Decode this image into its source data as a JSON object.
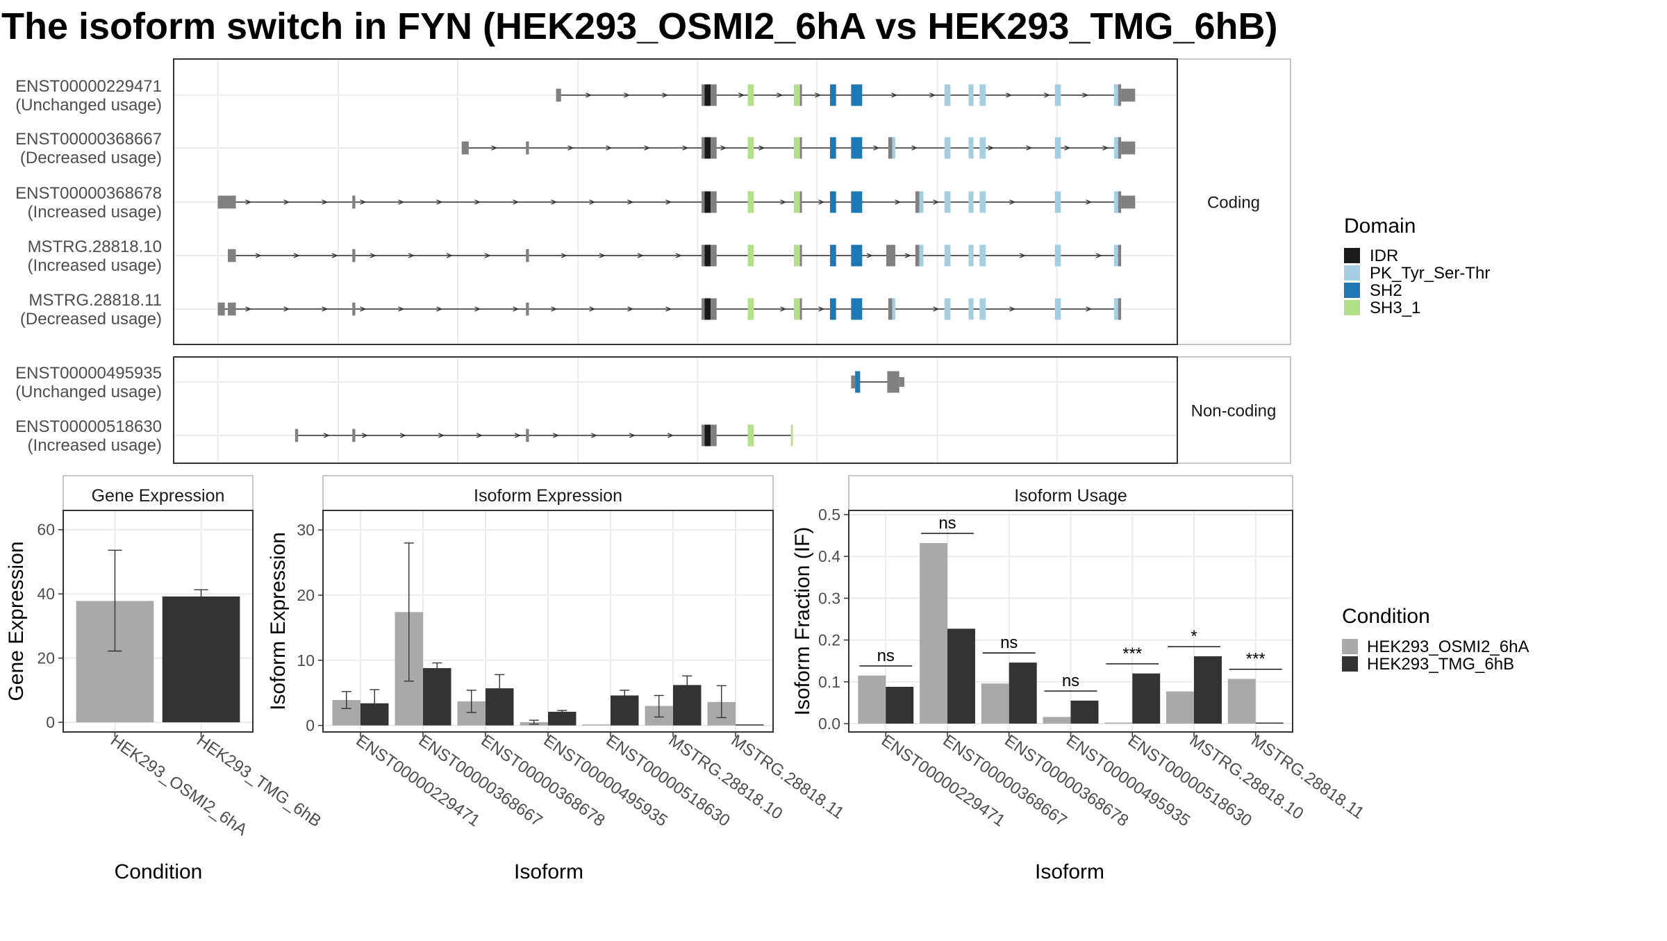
{
  "title": "The isoform switch in FYN (HEK293_OSMI2_6hA vs HEK293_TMG_6hB)",
  "colors": {
    "IDR": "#1a1a1a",
    "PK_Tyr_Ser-Thr": "#a6cee3",
    "SH2": "#1f78b4",
    "SH3_1": "#b2df8a",
    "exon": "#808080",
    "cond_a": "#a9a9a9",
    "cond_b": "#333333"
  },
  "domain_legend": {
    "title": "Domain",
    "items": [
      "IDR",
      "PK_Tyr_Ser-Thr",
      "SH2",
      "SH3_1"
    ]
  },
  "condition_legend": {
    "title": "Condition",
    "items": [
      "HEK293_OSMI2_6hA",
      "HEK293_TMG_6hB"
    ]
  },
  "structure": {
    "panels": [
      {
        "strip": "Coding",
        "isoforms": [
          {
            "name": "ENST00000229471",
            "usage": "(Unchanged usage)",
            "start": 0.383,
            "end": 0.948
          },
          {
            "name": "ENST00000368667",
            "usage": "(Decreased usage)",
            "start": 0.289,
            "end": 0.948
          },
          {
            "name": "ENST00000368678",
            "usage": "(Increased usage)",
            "start": 0.044,
            "end": 0.948
          },
          {
            "name": "MSTRG.28818.10",
            "usage": "(Increased usage)",
            "start": 0.054,
            "end": 0.942
          },
          {
            "name": "MSTRG.28818.11",
            "usage": "(Decreased usage)",
            "start": 0.044,
            "end": 0.942
          }
        ]
      },
      {
        "strip": "Non-coding",
        "isoforms": [
          {
            "name": "ENST00000495935",
            "usage": "(Unchanged usage)",
            "start": 0.678,
            "end": 0.722
          },
          {
            "name": "ENST00000518630",
            "usage": "(Increased usage)",
            "start": 0.122,
            "end": 0.615
          }
        ]
      }
    ]
  },
  "chart_data": [
    {
      "type": "bar",
      "title": "Gene Expression",
      "xlabel": "Condition",
      "ylabel": "Gene Expression",
      "ylim": [
        -3,
        66
      ],
      "yticks": [
        0,
        20,
        40,
        60
      ],
      "categories": [
        "HEK293_OSMI2_6hA",
        "HEK293_TMG_6hB"
      ],
      "values": [
        37.8,
        39.2
      ],
      "error_low": [
        22.2,
        37.2
      ],
      "error_high": [
        53.6,
        41.3
      ]
    },
    {
      "type": "bar",
      "title": "Isoform Expression",
      "xlabel": "Isoform",
      "ylabel": "Isoform Expression",
      "ylim": [
        -1,
        33
      ],
      "yticks": [
        0,
        10,
        20,
        30
      ],
      "categories": [
        "ENST00000229471",
        "ENST00000368667",
        "ENST00000368678",
        "ENST00000495935",
        "ENST00000518630",
        "MSTRG.28818.10",
        "MSTRG.28818.11"
      ],
      "series": [
        {
          "name": "HEK293_OSMI2_6hA",
          "values": [
            3.9,
            17.4,
            3.7,
            0.5,
            0,
            3.0,
            3.6
          ],
          "err_low": [
            2.6,
            6.8,
            2.0,
            0.2,
            0,
            1.3,
            1.2
          ],
          "err_high": [
            5.2,
            28.0,
            5.4,
            0.8,
            0,
            4.6,
            6.1
          ]
        },
        {
          "name": "HEK293_TMG_6hB",
          "values": [
            3.4,
            8.8,
            5.7,
            2.1,
            4.6,
            6.2,
            0
          ],
          "err_low": [
            1.3,
            7.9,
            3.6,
            1.9,
            3.9,
            4.7,
            0
          ],
          "err_high": [
            5.5,
            9.6,
            7.8,
            2.3,
            5.4,
            7.6,
            0
          ]
        }
      ]
    },
    {
      "type": "bar",
      "title": "Isoform Usage",
      "xlabel": "Isoform",
      "ylabel": "Isoform Fraction (IF)",
      "ylim": [
        -0.02,
        0.51
      ],
      "yticks": [
        "0.0",
        "0.1",
        "0.2",
        "0.3",
        "0.4",
        "0.5"
      ],
      "categories": [
        "ENST00000229471",
        "ENST00000368667",
        "ENST00000368678",
        "ENST00000495935",
        "ENST00000518630",
        "MSTRG.28818.10",
        "MSTRG.28818.11"
      ],
      "series": [
        {
          "name": "HEK293_OSMI2_6hA",
          "values": [
            0.115,
            0.432,
            0.096,
            0.016,
            0,
            0.077,
            0.107
          ]
        },
        {
          "name": "HEK293_TMG_6hB",
          "values": [
            0.088,
            0.227,
            0.146,
            0.055,
            0.12,
            0.161,
            0
          ]
        }
      ],
      "significance": [
        {
          "label": "ns",
          "y": 0.138
        },
        {
          "label": "ns",
          "y": 0.455
        },
        {
          "label": "ns",
          "y": 0.169
        },
        {
          "label": "ns",
          "y": 0.078
        },
        {
          "label": "***",
          "y": 0.143
        },
        {
          "label": "*",
          "y": 0.184
        },
        {
          "label": "***",
          "y": 0.13
        }
      ]
    }
  ]
}
